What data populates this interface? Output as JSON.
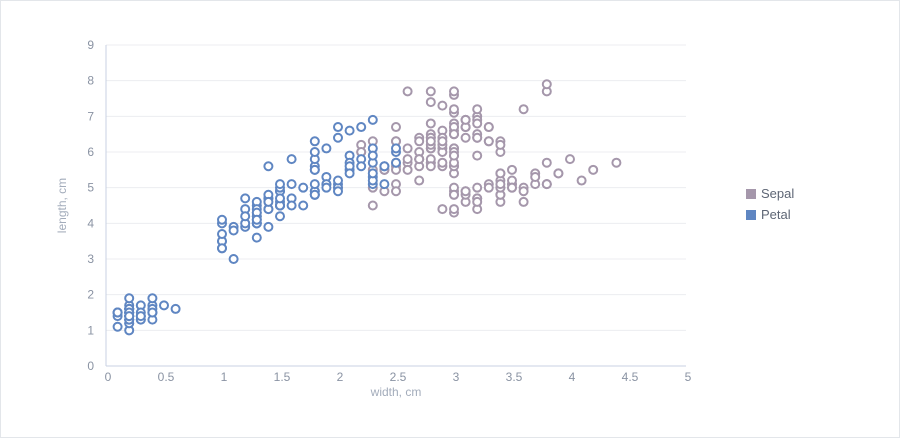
{
  "colors": {
    "sepal": "#a597ab",
    "petal": "#5f86c2",
    "grid": "#ecedf0",
    "axis": "#c8d2e3"
  },
  "chart_data": {
    "type": "scatter",
    "xlabel": "width, cm",
    "ylabel": "length, cm",
    "xlim": [
      0,
      5
    ],
    "ylim": [
      0,
      9
    ],
    "x_ticks": [
      "0",
      "0.5",
      "1",
      "1.5",
      "2",
      "2.5",
      "3",
      "3.5",
      "4",
      "4.5",
      "5"
    ],
    "y_ticks": [
      "0",
      "1",
      "2",
      "3",
      "4",
      "5",
      "6",
      "7",
      "8",
      "9"
    ],
    "grid": true,
    "legend_position": "right",
    "series": [
      {
        "name": "Sepal",
        "color": "#a597ab",
        "points": [
          [
            3.5,
            5.1
          ],
          [
            3.0,
            4.9
          ],
          [
            3.2,
            4.7
          ],
          [
            3.1,
            4.6
          ],
          [
            3.6,
            5.0
          ],
          [
            3.9,
            5.4
          ],
          [
            3.4,
            4.6
          ],
          [
            3.4,
            5.0
          ],
          [
            2.9,
            4.4
          ],
          [
            3.1,
            4.9
          ],
          [
            3.7,
            5.4
          ],
          [
            3.4,
            4.8
          ],
          [
            3.0,
            4.8
          ],
          [
            3.0,
            4.3
          ],
          [
            4.0,
            5.8
          ],
          [
            4.4,
            5.7
          ],
          [
            3.9,
            5.4
          ],
          [
            3.5,
            5.1
          ],
          [
            3.8,
            5.7
          ],
          [
            3.8,
            5.1
          ],
          [
            3.4,
            5.4
          ],
          [
            3.7,
            5.1
          ],
          [
            3.6,
            4.6
          ],
          [
            3.3,
            5.1
          ],
          [
            3.4,
            4.8
          ],
          [
            3.0,
            5.0
          ],
          [
            3.4,
            5.0
          ],
          [
            3.5,
            5.2
          ],
          [
            3.4,
            5.2
          ],
          [
            3.2,
            4.7
          ],
          [
            3.1,
            4.8
          ],
          [
            3.4,
            5.4
          ],
          [
            4.1,
            5.2
          ],
          [
            4.2,
            5.5
          ],
          [
            3.1,
            4.9
          ],
          [
            3.2,
            5.0
          ],
          [
            3.5,
            5.5
          ],
          [
            3.6,
            4.9
          ],
          [
            3.0,
            4.4
          ],
          [
            3.4,
            5.1
          ],
          [
            3.5,
            5.0
          ],
          [
            2.3,
            4.5
          ],
          [
            3.2,
            4.4
          ],
          [
            3.5,
            5.0
          ],
          [
            3.8,
            5.1
          ],
          [
            3.0,
            4.8
          ],
          [
            3.8,
            5.1
          ],
          [
            3.2,
            4.6
          ],
          [
            3.7,
            5.3
          ],
          [
            3.3,
            5.0
          ],
          [
            3.2,
            7.0
          ],
          [
            3.2,
            6.4
          ],
          [
            3.1,
            6.9
          ],
          [
            2.3,
            5.5
          ],
          [
            2.8,
            6.5
          ],
          [
            2.8,
            5.7
          ],
          [
            3.3,
            6.3
          ],
          [
            2.4,
            4.9
          ],
          [
            2.9,
            6.6
          ],
          [
            2.7,
            5.2
          ],
          [
            2.0,
            5.0
          ],
          [
            3.0,
            5.9
          ],
          [
            2.2,
            6.0
          ],
          [
            2.9,
            6.1
          ],
          [
            2.9,
            5.6
          ],
          [
            3.1,
            6.7
          ],
          [
            3.0,
            5.6
          ],
          [
            2.7,
            5.8
          ],
          [
            2.2,
            6.2
          ],
          [
            2.5,
            5.6
          ],
          [
            3.2,
            5.9
          ],
          [
            2.8,
            6.1
          ],
          [
            2.5,
            6.3
          ],
          [
            2.8,
            6.1
          ],
          [
            2.9,
            6.4
          ],
          [
            3.0,
            6.6
          ],
          [
            2.8,
            6.8
          ],
          [
            3.0,
            6.7
          ],
          [
            2.9,
            6.0
          ],
          [
            2.6,
            5.7
          ],
          [
            2.4,
            5.5
          ],
          [
            2.4,
            5.5
          ],
          [
            2.7,
            5.8
          ],
          [
            2.7,
            6.0
          ],
          [
            3.0,
            5.4
          ],
          [
            3.4,
            6.0
          ],
          [
            3.1,
            6.7
          ],
          [
            2.3,
            6.3
          ],
          [
            3.0,
            5.6
          ],
          [
            2.5,
            5.5
          ],
          [
            2.6,
            5.5
          ],
          [
            3.0,
            6.1
          ],
          [
            2.6,
            5.8
          ],
          [
            2.3,
            5.0
          ],
          [
            2.7,
            5.6
          ],
          [
            3.0,
            5.7
          ],
          [
            2.9,
            5.7
          ],
          [
            2.9,
            6.2
          ],
          [
            2.5,
            5.1
          ],
          [
            2.8,
            5.7
          ],
          [
            3.3,
            6.3
          ],
          [
            2.7,
            5.8
          ],
          [
            3.0,
            7.1
          ],
          [
            2.9,
            6.3
          ],
          [
            3.0,
            6.5
          ],
          [
            3.0,
            7.6
          ],
          [
            2.5,
            4.9
          ],
          [
            2.9,
            7.3
          ],
          [
            2.5,
            6.7
          ],
          [
            3.6,
            7.2
          ],
          [
            3.2,
            6.5
          ],
          [
            2.7,
            6.4
          ],
          [
            3.0,
            6.8
          ],
          [
            2.5,
            5.7
          ],
          [
            2.8,
            5.8
          ],
          [
            3.2,
            6.4
          ],
          [
            3.0,
            6.5
          ],
          [
            3.8,
            7.7
          ],
          [
            2.6,
            7.7
          ],
          [
            2.2,
            6.0
          ],
          [
            3.2,
            6.9
          ],
          [
            2.8,
            5.6
          ],
          [
            2.8,
            7.7
          ],
          [
            2.7,
            6.3
          ],
          [
            3.3,
            6.7
          ],
          [
            3.2,
            7.2
          ],
          [
            2.8,
            6.2
          ],
          [
            3.0,
            6.1
          ],
          [
            2.8,
            6.4
          ],
          [
            3.0,
            7.2
          ],
          [
            2.8,
            7.4
          ],
          [
            3.8,
            7.9
          ],
          [
            2.8,
            6.4
          ],
          [
            2.8,
            6.3
          ],
          [
            2.6,
            6.1
          ],
          [
            3.0,
            7.7
          ],
          [
            3.4,
            6.3
          ],
          [
            3.1,
            6.4
          ],
          [
            3.0,
            6.0
          ],
          [
            3.1,
            6.9
          ],
          [
            3.1,
            6.7
          ],
          [
            3.1,
            6.9
          ],
          [
            2.7,
            5.8
          ],
          [
            3.2,
            6.8
          ],
          [
            3.3,
            6.7
          ],
          [
            3.0,
            6.7
          ],
          [
            2.5,
            6.3
          ],
          [
            3.0,
            6.5
          ],
          [
            3.4,
            6.2
          ],
          [
            3.0,
            5.9
          ]
        ]
      },
      {
        "name": "Petal",
        "color": "#5f86c2",
        "points": [
          [
            0.2,
            1.4
          ],
          [
            0.2,
            1.4
          ],
          [
            0.2,
            1.3
          ],
          [
            0.2,
            1.5
          ],
          [
            0.2,
            1.4
          ],
          [
            0.4,
            1.7
          ],
          [
            0.3,
            1.4
          ],
          [
            0.2,
            1.5
          ],
          [
            0.2,
            1.4
          ],
          [
            0.1,
            1.5
          ],
          [
            0.2,
            1.5
          ],
          [
            0.2,
            1.6
          ],
          [
            0.1,
            1.4
          ],
          [
            0.1,
            1.1
          ],
          [
            0.2,
            1.2
          ],
          [
            0.4,
            1.5
          ],
          [
            0.4,
            1.3
          ],
          [
            0.3,
            1.4
          ],
          [
            0.3,
            1.7
          ],
          [
            0.3,
            1.5
          ],
          [
            0.2,
            1.7
          ],
          [
            0.4,
            1.5
          ],
          [
            0.2,
            1.0
          ],
          [
            0.5,
            1.7
          ],
          [
            0.2,
            1.9
          ],
          [
            0.2,
            1.6
          ],
          [
            0.4,
            1.6
          ],
          [
            0.2,
            1.5
          ],
          [
            0.2,
            1.4
          ],
          [
            0.2,
            1.6
          ],
          [
            0.2,
            1.6
          ],
          [
            0.4,
            1.5
          ],
          [
            0.1,
            1.5
          ],
          [
            0.2,
            1.4
          ],
          [
            0.1,
            1.5
          ],
          [
            0.2,
            1.2
          ],
          [
            0.2,
            1.3
          ],
          [
            0.1,
            1.5
          ],
          [
            0.2,
            1.3
          ],
          [
            0.2,
            1.5
          ],
          [
            0.3,
            1.3
          ],
          [
            0.3,
            1.3
          ],
          [
            0.2,
            1.3
          ],
          [
            0.6,
            1.6
          ],
          [
            0.4,
            1.9
          ],
          [
            0.3,
            1.4
          ],
          [
            0.2,
            1.6
          ],
          [
            0.2,
            1.4
          ],
          [
            0.2,
            1.5
          ],
          [
            0.2,
            1.4
          ],
          [
            1.4,
            4.7
          ],
          [
            1.5,
            4.5
          ],
          [
            1.5,
            4.9
          ],
          [
            1.3,
            4.0
          ],
          [
            1.5,
            4.6
          ],
          [
            1.3,
            4.5
          ],
          [
            1.6,
            4.7
          ],
          [
            1.0,
            3.3
          ],
          [
            1.3,
            4.6
          ],
          [
            1.4,
            3.9
          ],
          [
            1.0,
            3.5
          ],
          [
            1.5,
            4.2
          ],
          [
            1.0,
            4.0
          ],
          [
            1.4,
            4.7
          ],
          [
            1.3,
            3.6
          ],
          [
            1.4,
            4.4
          ],
          [
            1.5,
            4.5
          ],
          [
            1.0,
            4.1
          ],
          [
            1.5,
            4.5
          ],
          [
            1.1,
            3.9
          ],
          [
            1.8,
            4.8
          ],
          [
            1.3,
            4.0
          ],
          [
            1.5,
            4.9
          ],
          [
            1.2,
            4.7
          ],
          [
            1.3,
            4.3
          ],
          [
            1.4,
            4.4
          ],
          [
            1.4,
            4.8
          ],
          [
            1.7,
            5.0
          ],
          [
            1.5,
            4.5
          ],
          [
            1.0,
            3.5
          ],
          [
            1.1,
            3.8
          ],
          [
            1.0,
            3.7
          ],
          [
            1.2,
            3.9
          ],
          [
            1.6,
            5.1
          ],
          [
            1.5,
            4.5
          ],
          [
            1.6,
            4.5
          ],
          [
            1.5,
            4.7
          ],
          [
            1.3,
            4.4
          ],
          [
            1.3,
            4.1
          ],
          [
            1.3,
            4.0
          ],
          [
            1.2,
            4.4
          ],
          [
            1.4,
            4.6
          ],
          [
            1.2,
            4.0
          ],
          [
            1.0,
            3.3
          ],
          [
            1.3,
            4.2
          ],
          [
            1.2,
            4.2
          ],
          [
            1.3,
            4.2
          ],
          [
            1.3,
            4.3
          ],
          [
            1.1,
            3.0
          ],
          [
            1.3,
            4.1
          ],
          [
            2.5,
            6.0
          ],
          [
            1.9,
            5.1
          ],
          [
            2.1,
            5.9
          ],
          [
            1.8,
            5.6
          ],
          [
            2.2,
            5.8
          ],
          [
            2.1,
            6.6
          ],
          [
            1.7,
            4.5
          ],
          [
            1.8,
            6.3
          ],
          [
            1.8,
            5.8
          ],
          [
            2.5,
            6.1
          ],
          [
            2.0,
            5.1
          ],
          [
            1.9,
            5.3
          ],
          [
            2.1,
            5.5
          ],
          [
            2.0,
            5.0
          ],
          [
            2.4,
            5.1
          ],
          [
            2.3,
            5.3
          ],
          [
            1.8,
            5.5
          ],
          [
            2.2,
            6.7
          ],
          [
            2.3,
            6.9
          ],
          [
            1.5,
            5.0
          ],
          [
            2.3,
            5.7
          ],
          [
            2.0,
            4.9
          ],
          [
            2.0,
            6.7
          ],
          [
            1.8,
            4.9
          ],
          [
            2.1,
            5.7
          ],
          [
            1.8,
            6.0
          ],
          [
            1.8,
            4.8
          ],
          [
            1.8,
            4.9
          ],
          [
            2.1,
            5.6
          ],
          [
            1.6,
            5.8
          ],
          [
            1.9,
            6.1
          ],
          [
            2.0,
            6.4
          ],
          [
            2.2,
            5.6
          ],
          [
            1.5,
            5.1
          ],
          [
            1.4,
            5.6
          ],
          [
            2.3,
            6.1
          ],
          [
            2.4,
            5.6
          ],
          [
            1.8,
            5.5
          ],
          [
            1.8,
            4.8
          ],
          [
            2.1,
            5.4
          ],
          [
            2.4,
            5.6
          ],
          [
            2.3,
            5.1
          ],
          [
            1.9,
            5.1
          ],
          [
            2.3,
            5.9
          ],
          [
            2.5,
            5.7
          ],
          [
            2.3,
            5.2
          ],
          [
            1.9,
            5.0
          ],
          [
            2.0,
            5.2
          ],
          [
            2.3,
            5.4
          ],
          [
            1.8,
            5.1
          ]
        ]
      }
    ]
  }
}
